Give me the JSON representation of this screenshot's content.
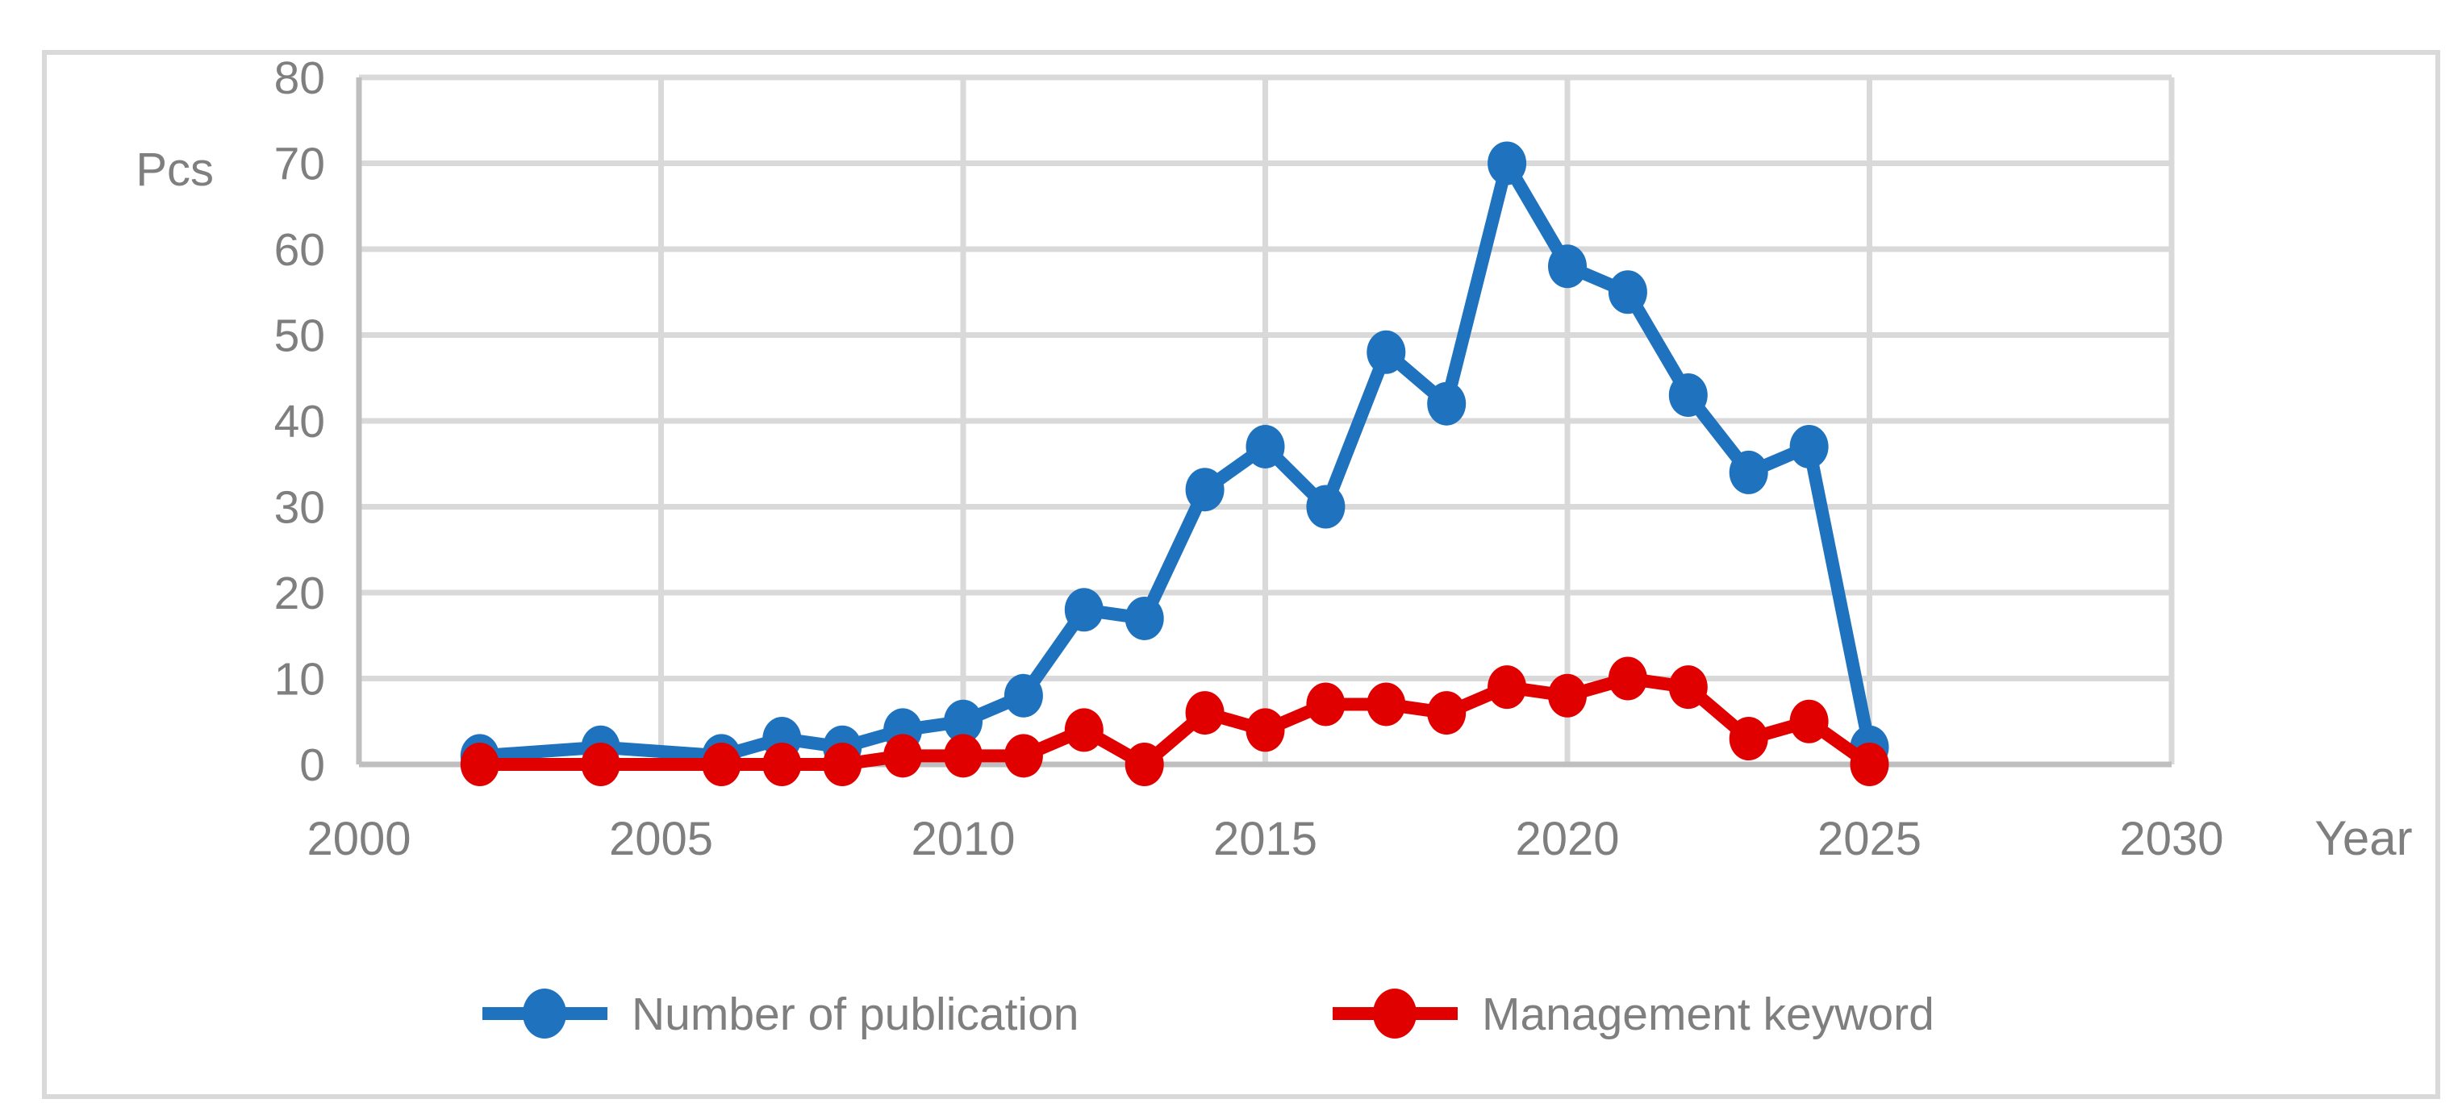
{
  "figure": {
    "background": "#ffffff",
    "border_color": "#d9d9d9"
  },
  "palette": {
    "gridline": "#d9d9d9",
    "axis_line": "#bfbfbf",
    "text_gray": "#7f7f7f",
    "series_blue": "#1f72be",
    "series_red": "#e00000"
  },
  "chart_data": {
    "type": "line",
    "title": "",
    "xlabel": "Year",
    "ylabel": "Pcs",
    "xlim": [
      2000,
      2030
    ],
    "ylim": [
      0,
      80
    ],
    "x_ticks": [
      2000,
      2005,
      2010,
      2015,
      2020,
      2025,
      2030
    ],
    "y_ticks": [
      0,
      10,
      20,
      30,
      40,
      50,
      60,
      70,
      80
    ],
    "grid": true,
    "legend_position": "bottom",
    "x": [
      2002,
      2004,
      2006,
      2007,
      2008,
      2009,
      2010,
      2011,
      2012,
      2013,
      2014,
      2015,
      2016,
      2017,
      2018,
      2019,
      2020,
      2021,
      2022,
      2023,
      2024,
      2025
    ],
    "series": [
      {
        "name": "Number of publication",
        "color": "#1f72be",
        "values": [
          1,
          2,
          1,
          3,
          2,
          4,
          5,
          8,
          18,
          17,
          32,
          37,
          30,
          48,
          42,
          70,
          58,
          55,
          43,
          34,
          37,
          2
        ]
      },
      {
        "name": "Management keyword",
        "color": "#e00000",
        "values": [
          0,
          0,
          0,
          0,
          0,
          1,
          1,
          1,
          4,
          0,
          6,
          4,
          7,
          7,
          6,
          9,
          8,
          10,
          9,
          3,
          5,
          0
        ]
      }
    ]
  }
}
